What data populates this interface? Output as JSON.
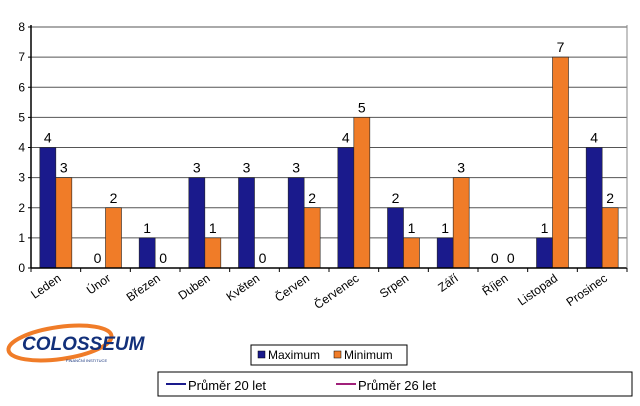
{
  "chart_data": {
    "type": "bar",
    "categories": [
      "Leden",
      "Únor",
      "Březen",
      "Duben",
      "Květen",
      "Červen",
      "Červenec",
      "Srpen",
      "Září",
      "Říjen",
      "Listopad",
      "Prosinec"
    ],
    "series": [
      {
        "name": "Maximum",
        "color": "#1a1a8c",
        "values": [
          4,
          0,
          1,
          3,
          3,
          3,
          4,
          2,
          1,
          0,
          1,
          4
        ]
      },
      {
        "name": "Minimum",
        "color": "#f07c28",
        "values": [
          3,
          2,
          0,
          1,
          0,
          2,
          5,
          1,
          3,
          0,
          7,
          2
        ]
      }
    ],
    "ylim": [
      0,
      8
    ],
    "yticks": [
      0,
      1,
      2,
      3,
      4,
      5,
      6,
      7,
      8
    ],
    "grid": true,
    "legend": "bottom-center",
    "title": "",
    "xlabel": "",
    "ylabel": ""
  },
  "logo": {
    "text": "COLOSSEUM",
    "subtext": "FINANČNÍ INSTITUCE"
  },
  "second_legend": {
    "items": [
      {
        "label": "Průměr 20 let",
        "color": "#1a1a8c"
      },
      {
        "label": "Průměr 26 let",
        "color": "#a0207a"
      }
    ]
  }
}
